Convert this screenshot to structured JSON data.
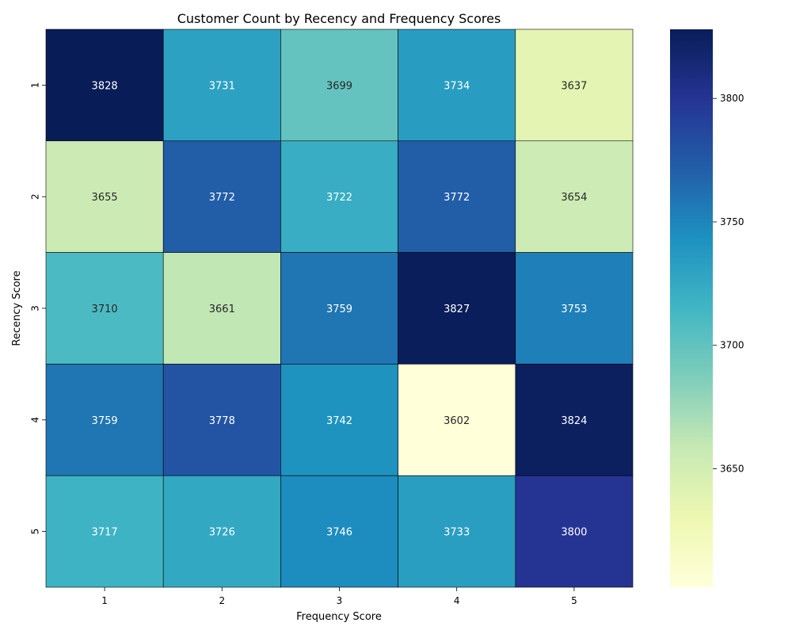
{
  "chart_data": {
    "type": "heatmap",
    "title": "Customer Count by Recency and Frequency Scores",
    "xlabel": "Frequency Score",
    "ylabel": "Recency Score",
    "x_categories": [
      "1",
      "2",
      "3",
      "4",
      "5"
    ],
    "y_categories": [
      "1",
      "2",
      "3",
      "4",
      "5"
    ],
    "values": [
      [
        3828,
        3731,
        3699,
        3734,
        3637
      ],
      [
        3655,
        3772,
        3722,
        3772,
        3654
      ],
      [
        3710,
        3661,
        3759,
        3827,
        3753
      ],
      [
        3759,
        3778,
        3742,
        3602,
        3824
      ],
      [
        3717,
        3726,
        3746,
        3733,
        3800
      ]
    ],
    "colormap": "YlGnBu",
    "colorbar": {
      "min": 3602,
      "max": 3828,
      "ticks": [
        3650,
        3700,
        3750,
        3800
      ]
    },
    "annotations": true,
    "grid": false
  }
}
